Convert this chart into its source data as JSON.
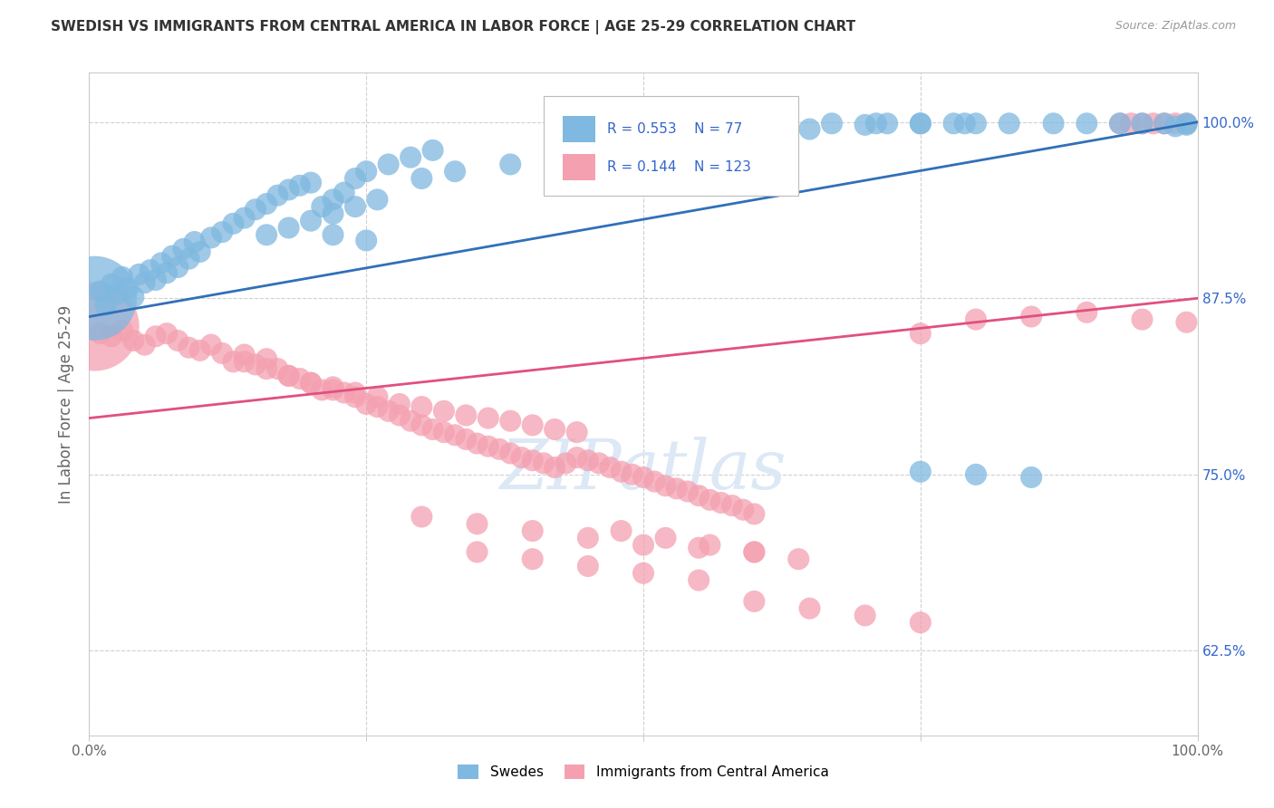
{
  "title": "SWEDISH VS IMMIGRANTS FROM CENTRAL AMERICA IN LABOR FORCE | AGE 25-29 CORRELATION CHART",
  "source": "Source: ZipAtlas.com",
  "ylabel": "In Labor Force | Age 25-29",
  "xlim": [
    0.0,
    1.0
  ],
  "ylim": [
    0.565,
    1.035
  ],
  "yticks_right": [
    0.625,
    0.75,
    0.875,
    1.0
  ],
  "ytick_labels_right": [
    "62.5%",
    "75.0%",
    "87.5%",
    "100.0%"
  ],
  "blue_R": 0.553,
  "blue_N": 77,
  "pink_R": 0.144,
  "pink_N": 123,
  "blue_color": "#7fb8e0",
  "pink_color": "#f4a0b0",
  "blue_line_color": "#3070b8",
  "pink_line_color": "#e05080",
  "legend_label_blue": "Swedes",
  "legend_label_pink": "Immigrants from Central America",
  "background_color": "#ffffff",
  "grid_color": "#d0d0d0",
  "title_color": "#333333",
  "axis_label_color": "#666666",
  "right_tick_color": "#3366cc",
  "blue_line_start_y": 0.862,
  "blue_line_end_y": 1.0,
  "pink_line_start_y": 0.79,
  "pink_line_end_y": 0.875,
  "blue_dot_x": [
    0.005,
    0.01,
    0.015,
    0.02,
    0.025,
    0.03,
    0.035,
    0.04,
    0.045,
    0.05,
    0.055,
    0.06,
    0.065,
    0.07,
    0.075,
    0.08,
    0.085,
    0.09,
    0.095,
    0.1,
    0.11,
    0.12,
    0.13,
    0.14,
    0.15,
    0.16,
    0.17,
    0.18,
    0.19,
    0.2,
    0.21,
    0.22,
    0.23,
    0.24,
    0.25,
    0.27,
    0.29,
    0.31,
    0.22,
    0.24,
    0.26,
    0.2,
    0.18,
    0.16,
    0.3,
    0.33,
    0.38,
    0.45,
    0.5,
    0.55,
    0.6,
    0.65,
    0.7,
    0.72,
    0.75,
    0.78,
    0.8,
    0.63,
    0.67,
    0.71,
    0.75,
    0.79,
    0.83,
    0.87,
    0.9,
    0.93,
    0.95,
    0.97,
    0.99,
    0.99,
    0.98,
    0.75,
    0.8,
    0.85,
    0.22,
    0.25
  ],
  "blue_dot_y": [
    0.875,
    0.88,
    0.87,
    0.885,
    0.878,
    0.89,
    0.882,
    0.876,
    0.892,
    0.886,
    0.895,
    0.888,
    0.9,
    0.893,
    0.905,
    0.897,
    0.91,
    0.903,
    0.915,
    0.908,
    0.918,
    0.922,
    0.928,
    0.932,
    0.938,
    0.942,
    0.948,
    0.952,
    0.955,
    0.957,
    0.94,
    0.945,
    0.95,
    0.96,
    0.965,
    0.97,
    0.975,
    0.98,
    0.935,
    0.94,
    0.945,
    0.93,
    0.925,
    0.92,
    0.96,
    0.965,
    0.97,
    0.975,
    0.98,
    0.985,
    0.99,
    0.995,
    0.998,
    0.999,
    0.999,
    0.999,
    0.999,
    0.999,
    0.999,
    0.999,
    0.999,
    0.999,
    0.999,
    0.999,
    0.999,
    0.999,
    0.999,
    0.999,
    0.999,
    0.998,
    0.997,
    0.752,
    0.75,
    0.748,
    0.92,
    0.916
  ],
  "blue_dot_s": [
    4500,
    300,
    300,
    300,
    300,
    300,
    300,
    300,
    300,
    300,
    300,
    300,
    300,
    300,
    300,
    300,
    300,
    300,
    300,
    300,
    300,
    300,
    300,
    300,
    300,
    300,
    300,
    300,
    300,
    300,
    300,
    300,
    300,
    300,
    300,
    300,
    300,
    300,
    300,
    300,
    300,
    300,
    300,
    300,
    300,
    300,
    300,
    300,
    300,
    300,
    300,
    300,
    300,
    300,
    300,
    300,
    300,
    300,
    300,
    300,
    300,
    300,
    300,
    300,
    300,
    300,
    300,
    300,
    300,
    300,
    300,
    300,
    300,
    300,
    300,
    300
  ],
  "pink_dot_x": [
    0.005,
    0.01,
    0.02,
    0.03,
    0.04,
    0.05,
    0.06,
    0.07,
    0.08,
    0.09,
    0.1,
    0.11,
    0.12,
    0.13,
    0.14,
    0.15,
    0.16,
    0.17,
    0.18,
    0.19,
    0.2,
    0.21,
    0.22,
    0.23,
    0.24,
    0.25,
    0.26,
    0.27,
    0.28,
    0.29,
    0.3,
    0.31,
    0.32,
    0.33,
    0.34,
    0.35,
    0.36,
    0.37,
    0.38,
    0.39,
    0.4,
    0.41,
    0.42,
    0.43,
    0.44,
    0.45,
    0.46,
    0.47,
    0.48,
    0.49,
    0.5,
    0.51,
    0.52,
    0.53,
    0.54,
    0.55,
    0.56,
    0.57,
    0.58,
    0.59,
    0.6,
    0.14,
    0.16,
    0.18,
    0.2,
    0.22,
    0.24,
    0.26,
    0.28,
    0.3,
    0.32,
    0.34,
    0.36,
    0.38,
    0.4,
    0.42,
    0.44,
    0.3,
    0.35,
    0.4,
    0.45,
    0.5,
    0.55,
    0.6,
    0.35,
    0.4,
    0.45,
    0.5,
    0.55,
    0.48,
    0.52,
    0.56,
    0.6,
    0.64,
    0.6,
    0.65,
    0.7,
    0.75,
    0.75,
    0.8,
    0.85,
    0.9,
    0.95,
    0.99,
    0.99,
    0.98,
    0.97,
    0.96,
    0.95,
    0.94,
    0.93
  ],
  "pink_dot_y": [
    0.855,
    0.85,
    0.848,
    0.852,
    0.845,
    0.842,
    0.848,
    0.85,
    0.845,
    0.84,
    0.838,
    0.842,
    0.836,
    0.83,
    0.835,
    0.828,
    0.832,
    0.825,
    0.82,
    0.818,
    0.815,
    0.81,
    0.812,
    0.808,
    0.805,
    0.8,
    0.798,
    0.795,
    0.792,
    0.788,
    0.785,
    0.782,
    0.78,
    0.778,
    0.775,
    0.772,
    0.77,
    0.768,
    0.765,
    0.762,
    0.76,
    0.758,
    0.755,
    0.758,
    0.762,
    0.76,
    0.758,
    0.755,
    0.752,
    0.75,
    0.748,
    0.745,
    0.742,
    0.74,
    0.738,
    0.735,
    0.732,
    0.73,
    0.728,
    0.725,
    0.722,
    0.83,
    0.825,
    0.82,
    0.815,
    0.81,
    0.808,
    0.805,
    0.8,
    0.798,
    0.795,
    0.792,
    0.79,
    0.788,
    0.785,
    0.782,
    0.78,
    0.72,
    0.715,
    0.71,
    0.705,
    0.7,
    0.698,
    0.695,
    0.695,
    0.69,
    0.685,
    0.68,
    0.675,
    0.71,
    0.705,
    0.7,
    0.695,
    0.69,
    0.66,
    0.655,
    0.65,
    0.645,
    0.85,
    0.86,
    0.862,
    0.865,
    0.86,
    0.858,
    0.999,
    0.999,
    0.999,
    0.999,
    0.999,
    0.999,
    0.999
  ],
  "pink_dot_s": [
    5000,
    300,
    300,
    300,
    300,
    300,
    300,
    300,
    300,
    300,
    300,
    300,
    300,
    300,
    300,
    300,
    300,
    300,
    300,
    300,
    300,
    300,
    300,
    300,
    300,
    300,
    300,
    300,
    300,
    300,
    300,
    300,
    300,
    300,
    300,
    300,
    300,
    300,
    300,
    300,
    300,
    300,
    300,
    300,
    300,
    300,
    300,
    300,
    300,
    300,
    300,
    300,
    300,
    300,
    300,
    300,
    300,
    300,
    300,
    300,
    300,
    300,
    300,
    300,
    300,
    300,
    300,
    300,
    300,
    300,
    300,
    300,
    300,
    300,
    300,
    300,
    300,
    300,
    300,
    300,
    300,
    300,
    300,
    300,
    300,
    300,
    300,
    300,
    300,
    300,
    300,
    300,
    300,
    300,
    300,
    300,
    300,
    300,
    300,
    300,
    300,
    300,
    300,
    300,
    300,
    300,
    300,
    300,
    300,
    300,
    300
  ]
}
